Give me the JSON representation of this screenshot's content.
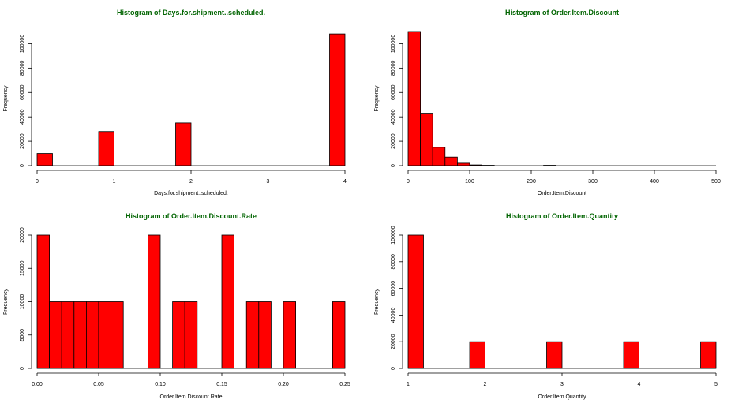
{
  "chart_data": [
    {
      "type": "bar",
      "title": "Histogram of Days.for.shipment..scheduled.",
      "xlabel": "Days.for.shipment..scheduled.",
      "ylabel": "Frequency",
      "xlim": [
        0,
        4
      ],
      "ylim": [
        0,
        110000
      ],
      "x_ticks": [
        0,
        1,
        2,
        3,
        4
      ],
      "y_ticks": [
        0,
        20000,
        40000,
        60000,
        80000,
        100000
      ],
      "bin_width": 0.2,
      "bins": [
        {
          "x0": 0.0,
          "x1": 0.2,
          "count": 10000
        },
        {
          "x0": 0.8,
          "x1": 1.0,
          "count": 28000
        },
        {
          "x0": 1.8,
          "x1": 2.0,
          "count": 35000
        },
        {
          "x0": 3.8,
          "x1": 4.0,
          "count": 108000
        }
      ],
      "colors": {
        "fill": "#ff0000",
        "edge": "#000000",
        "title": "#006400"
      }
    },
    {
      "type": "bar",
      "title": "Histogram of Order.Item.Discount",
      "xlabel": "Order.Item.Discount",
      "ylabel": "Frequency",
      "xlim": [
        0,
        500
      ],
      "ylim": [
        0,
        110000
      ],
      "x_ticks": [
        0,
        100,
        200,
        300,
        400,
        500
      ],
      "y_ticks": [
        0,
        20000,
        40000,
        60000,
        80000,
        100000
      ],
      "bin_width": 20,
      "bins": [
        {
          "x0": 0,
          "x1": 20,
          "count": 110000
        },
        {
          "x0": 20,
          "x1": 40,
          "count": 43000
        },
        {
          "x0": 40,
          "x1": 60,
          "count": 15000
        },
        {
          "x0": 60,
          "x1": 80,
          "count": 7000
        },
        {
          "x0": 80,
          "x1": 100,
          "count": 2000
        },
        {
          "x0": 100,
          "x1": 120,
          "count": 600
        },
        {
          "x0": 120,
          "x1": 140,
          "count": 300
        },
        {
          "x0": 220,
          "x1": 240,
          "count": 300
        }
      ],
      "colors": {
        "fill": "#ff0000",
        "edge": "#000000",
        "title": "#006400"
      }
    },
    {
      "type": "bar",
      "title": "Histogram of Order.Item.Discount.Rate",
      "xlabel": "Order.Item.Discount.Rate",
      "ylabel": "Frequency",
      "xlim": [
        0,
        0.25
      ],
      "ylim": [
        0,
        20000
      ],
      "x_ticks": [
        0.0,
        0.05,
        0.1,
        0.15,
        0.2,
        0.25
      ],
      "x_tick_labels": [
        "0.00",
        "0.05",
        "0.10",
        "0.15",
        "0.20",
        "0.25"
      ],
      "y_ticks": [
        0,
        5000,
        10000,
        15000,
        20000
      ],
      "bin_width": 0.01,
      "bins": [
        {
          "x0": 0.0,
          "x1": 0.01,
          "count": 20000
        },
        {
          "x0": 0.01,
          "x1": 0.02,
          "count": 10000
        },
        {
          "x0": 0.02,
          "x1": 0.03,
          "count": 10000
        },
        {
          "x0": 0.03,
          "x1": 0.04,
          "count": 10000
        },
        {
          "x0": 0.04,
          "x1": 0.05,
          "count": 10000
        },
        {
          "x0": 0.05,
          "x1": 0.06,
          "count": 10000
        },
        {
          "x0": 0.06,
          "x1": 0.07,
          "count": 10000
        },
        {
          "x0": 0.09,
          "x1": 0.1,
          "count": 20000
        },
        {
          "x0": 0.11,
          "x1": 0.12,
          "count": 10000
        },
        {
          "x0": 0.12,
          "x1": 0.13,
          "count": 10000
        },
        {
          "x0": 0.15,
          "x1": 0.16,
          "count": 20000
        },
        {
          "x0": 0.17,
          "x1": 0.18,
          "count": 10000
        },
        {
          "x0": 0.18,
          "x1": 0.19,
          "count": 10000
        },
        {
          "x0": 0.2,
          "x1": 0.21,
          "count": 10000
        },
        {
          "x0": 0.24,
          "x1": 0.25,
          "count": 10000
        }
      ],
      "colors": {
        "fill": "#ff0000",
        "edge": "#000000",
        "title": "#006400"
      }
    },
    {
      "type": "bar",
      "title": "Histogram of Order.Item.Quantity",
      "xlabel": "Order.Item.Quantity",
      "ylabel": "Frequency",
      "xlim": [
        1,
        5
      ],
      "ylim": [
        0,
        100000
      ],
      "x_ticks": [
        1,
        2,
        3,
        4,
        5
      ],
      "y_ticks": [
        0,
        20000,
        40000,
        60000,
        80000,
        100000
      ],
      "bin_width": 0.2,
      "bins": [
        {
          "x0": 1.0,
          "x1": 1.2,
          "count": 100000
        },
        {
          "x0": 1.8,
          "x1": 2.0,
          "count": 20000
        },
        {
          "x0": 2.8,
          "x1": 3.0,
          "count": 20000
        },
        {
          "x0": 3.8,
          "x1": 4.0,
          "count": 20000
        },
        {
          "x0": 4.8,
          "x1": 5.0,
          "count": 20000
        }
      ],
      "colors": {
        "fill": "#ff0000",
        "edge": "#000000",
        "title": "#006400"
      }
    }
  ]
}
